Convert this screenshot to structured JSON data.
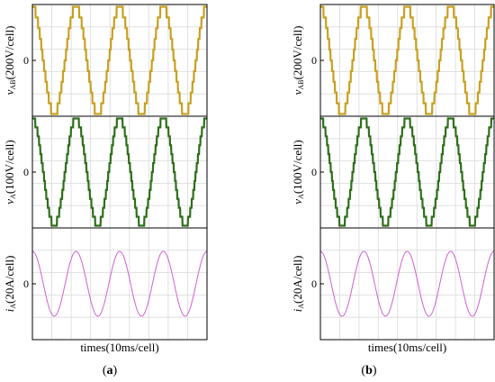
{
  "chart_data": [
    {
      "type": "line",
      "caption": "a",
      "xlabel": "times(10ms/cell)",
      "panels": [
        {
          "ylabel_var": "v",
          "ylabel_sub": "AB",
          "ylabel_unit": "(200V/cell)",
          "ytick": "0",
          "series": {
            "color": "#c8a020",
            "waveform": "multilevel-sine",
            "levels": 11,
            "periods": 4,
            "amplitude_cells": 2.4
          }
        },
        {
          "ylabel_var": "v",
          "ylabel_sub": "A",
          "ylabel_unit": "(100V/cell)",
          "ytick": "0",
          "series": {
            "color": "#2e6e1a",
            "waveform": "multilevel-sine",
            "levels": 13,
            "periods": 4,
            "amplitude_cells": 2.4
          }
        },
        {
          "ylabel_var": "i",
          "ylabel_sub": "A",
          "ylabel_unit": "(20A/cell)",
          "ytick": "0",
          "series": {
            "color": "#d060d0",
            "waveform": "sine",
            "periods": 4,
            "amplitude_cells": 1.45
          }
        }
      ]
    },
    {
      "type": "line",
      "caption": "b",
      "xlabel": "times(10ms/cell)",
      "panels": [
        {
          "ylabel_var": "v",
          "ylabel_sub": "AB",
          "ylabel_unit": "(200V/cell)",
          "ytick": "0",
          "series": {
            "color": "#c8a020",
            "waveform": "multilevel-sine",
            "levels": 11,
            "periods": 4,
            "amplitude_cells": 2.4
          }
        },
        {
          "ylabel_var": "v",
          "ylabel_sub": "A",
          "ylabel_unit": "(100V/cell)",
          "ytick": "0",
          "series": {
            "color": "#2e6e1a",
            "waveform": "multilevel-sine",
            "levels": 13,
            "periods": 4,
            "amplitude_cells": 2.4
          }
        },
        {
          "ylabel_var": "i",
          "ylabel_sub": "A",
          "ylabel_unit": "(20A/cell)",
          "ytick": "0",
          "series": {
            "color": "#d060d0",
            "waveform": "sine",
            "periods": 4,
            "amplitude_cells": 1.45
          }
        }
      ]
    }
  ]
}
